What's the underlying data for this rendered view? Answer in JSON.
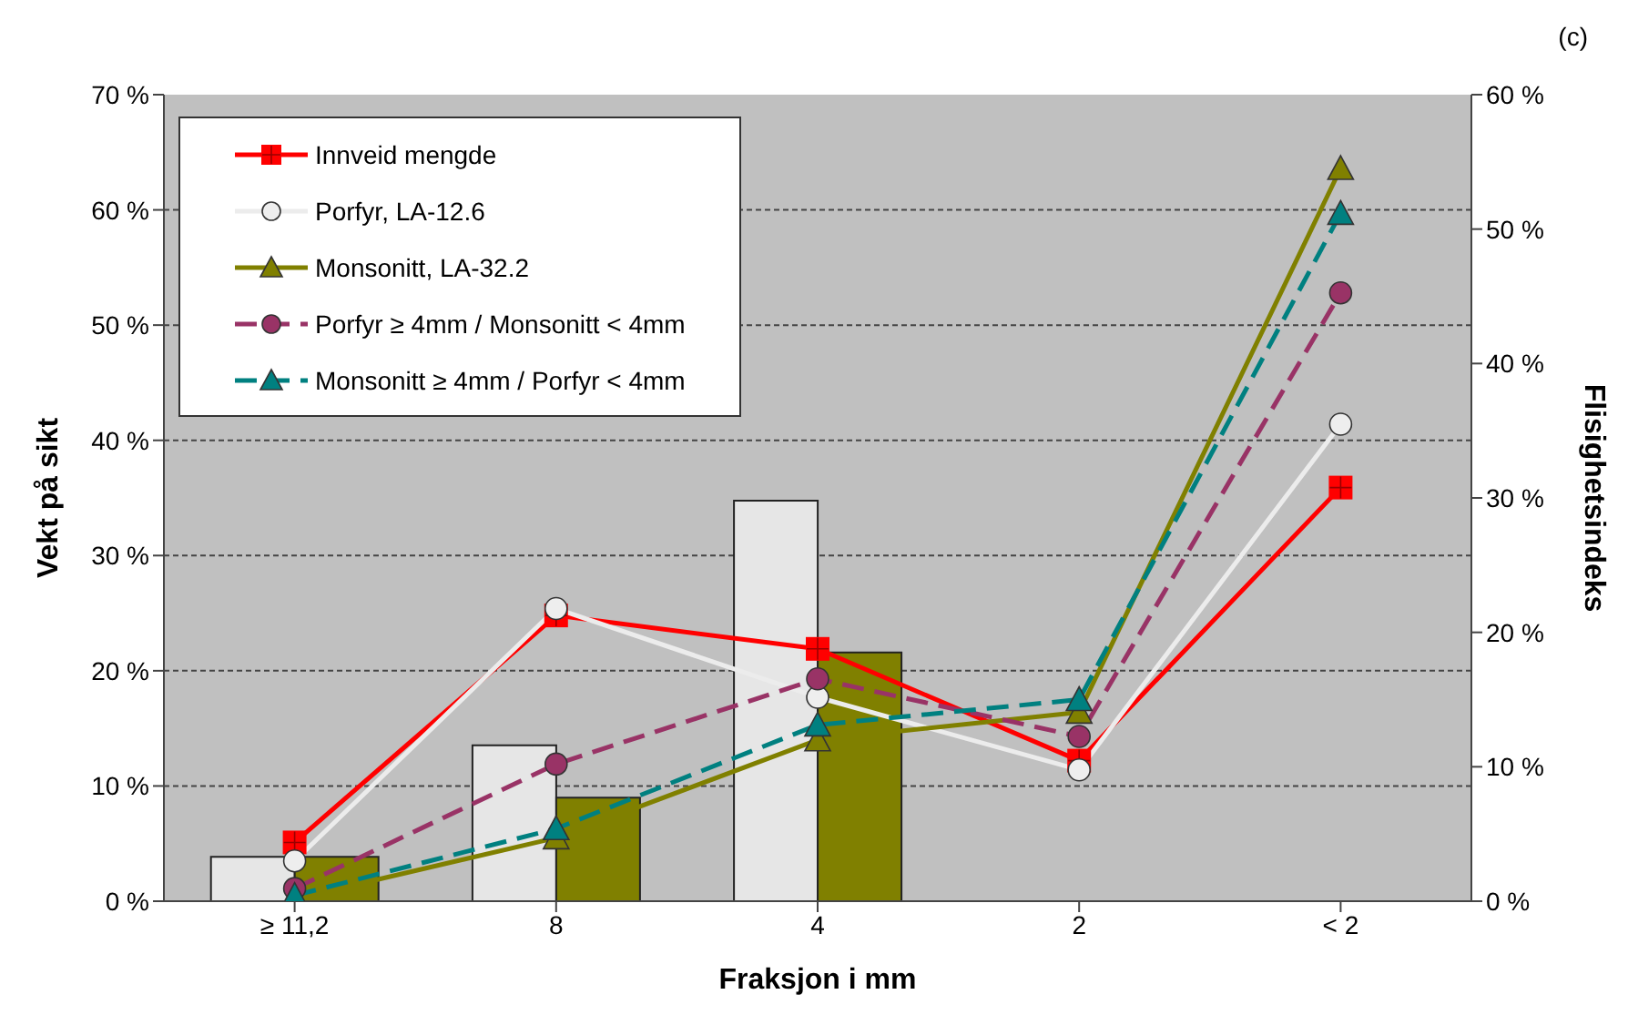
{
  "chart_data": {
    "type": "line",
    "annotations": [
      "(c)"
    ],
    "xlabel": "Fraksjon i mm",
    "ylabel": "Vekt på sikt",
    "y2label": "Flisighetsindeks",
    "categories": [
      "≥ 11,2",
      "8",
      "4",
      "2",
      "< 2"
    ],
    "series": [
      {
        "type": "bar",
        "axis": "y2",
        "color": "#e6e6e6",
        "values": [
          3.3,
          11.6,
          29.8,
          null,
          null
        ]
      },
      {
        "type": "bar",
        "axis": "y2",
        "color": "#808000",
        "values": [
          3.3,
          7.7,
          18.5,
          null,
          null
        ]
      },
      {
        "name": "Innveid mengde",
        "color": "#ff0000",
        "marker": "square",
        "line_style": "solid",
        "values": [
          5.1,
          24.8,
          21.9,
          12.2,
          35.9
        ]
      },
      {
        "name": "Porfyr, LA-12.6",
        "color": "#ececec",
        "marker": "circle",
        "line_style": "solid",
        "values": [
          3.5,
          25.4,
          17.7,
          11.4,
          41.4
        ]
      },
      {
        "name": "Monsonitt, LA-32.2",
        "color": "#808000",
        "marker": "triangle",
        "line_style": "solid",
        "values": [
          0.2,
          5.5,
          14.0,
          16.4,
          63.6
        ]
      },
      {
        "name": "Porfyr ≥ 4mm  / Monsonitt  < 4mm",
        "color": "#993366",
        "marker": "circle",
        "line_style": "dashed",
        "values": [
          1.1,
          11.9,
          19.3,
          14.3,
          52.8
        ]
      },
      {
        "name": "Monsonitt ≥ 4mm  / Porfyr  < 4mm",
        "color": "#008080",
        "marker": "triangle",
        "line_style": "dashed",
        "values": [
          0.5,
          6.3,
          15.3,
          17.5,
          59.7
        ]
      }
    ],
    "ylim": [
      0,
      70
    ],
    "yticks": [
      {
        "value": 0,
        "label": "0 %"
      },
      {
        "value": 10,
        "label": "10 %"
      },
      {
        "value": 20,
        "label": "20 %"
      },
      {
        "value": 30,
        "label": "30 %"
      },
      {
        "value": 40,
        "label": "40 %"
      },
      {
        "value": 50,
        "label": "50 %"
      },
      {
        "value": 60,
        "label": "60 %"
      },
      {
        "value": 70,
        "label": "70 %"
      }
    ],
    "y2lim": [
      0,
      60
    ],
    "y2ticks": [
      {
        "value": 0,
        "label": "0 %"
      },
      {
        "value": 10,
        "label": "10 %"
      },
      {
        "value": 20,
        "label": "20 %"
      },
      {
        "value": 30,
        "label": "30 %"
      },
      {
        "value": 40,
        "label": "40 %"
      },
      {
        "value": 50,
        "label": "50 %"
      },
      {
        "value": 60,
        "label": "60 %"
      }
    ],
    "grid": "y",
    "legend": "top left"
  }
}
